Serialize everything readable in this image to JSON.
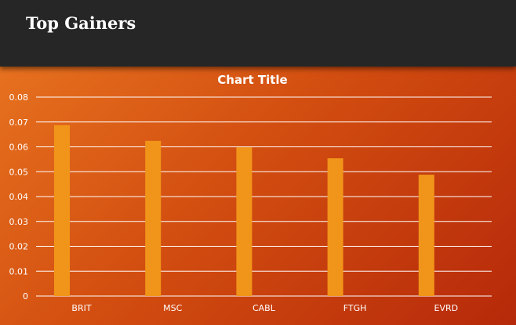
{
  "header": {
    "title": "Top Gainers"
  },
  "chart_data": {
    "type": "bar",
    "title": "Chart Title",
    "categories": [
      "BRIT",
      "MSC",
      "CABL",
      "FTGH",
      "EVRD"
    ],
    "values": [
      0.0687,
      0.0624,
      0.0598,
      0.0554,
      0.0488
    ],
    "ylim": [
      0,
      0.08
    ],
    "yticks": [
      "0",
      "0.01",
      "0.02",
      "0.03",
      "0.04",
      "0.05",
      "0.06",
      "0.07",
      "0.08"
    ],
    "grid": true,
    "colors": {
      "bar": "#f0951a",
      "grid": "#ffffff",
      "header": "#262626"
    }
  }
}
